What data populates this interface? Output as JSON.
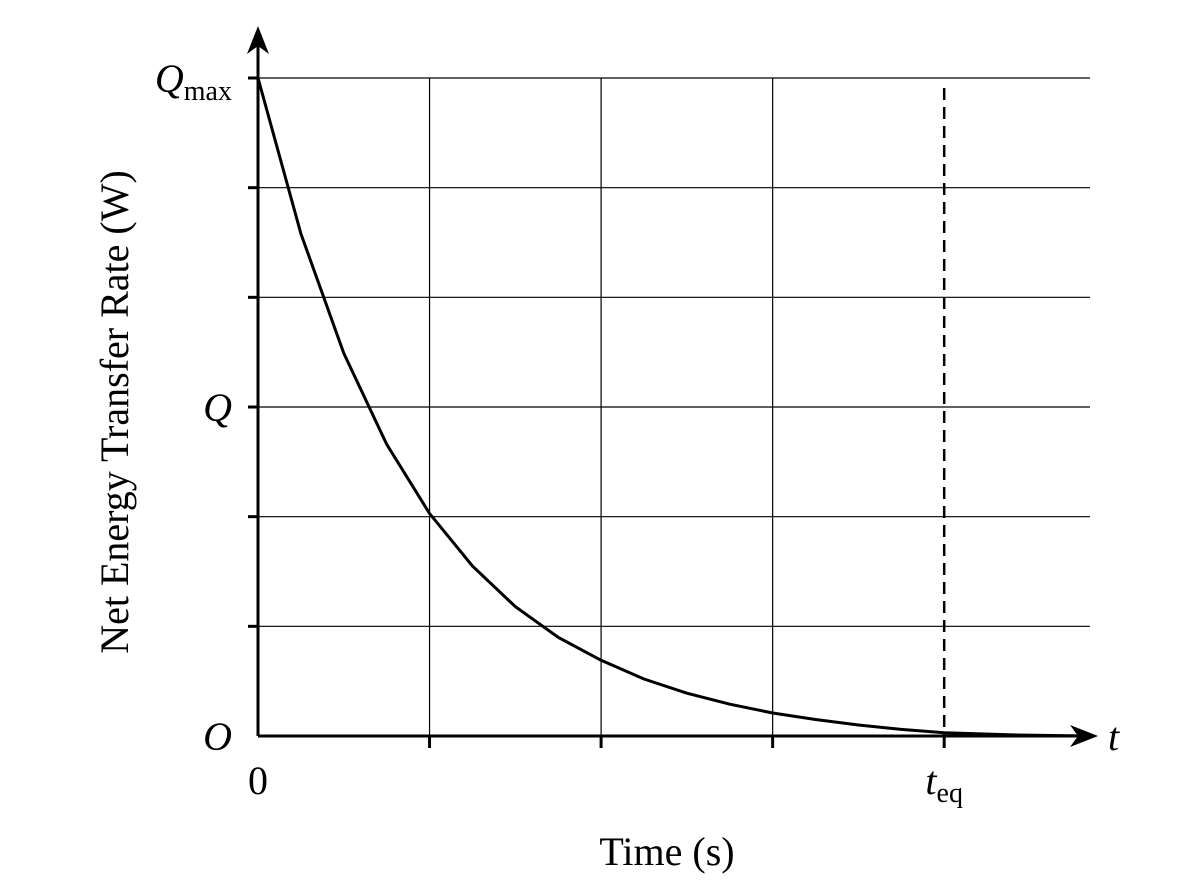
{
  "chart_data": {
    "type": "line",
    "xlabel": "Time (s)",
    "ylabel": "Net Energy Transfer Rate (W)",
    "x_axis_symbol": "t",
    "x_ticks": [
      {
        "main": "0",
        "sub": ""
      },
      {
        "main": "t",
        "sub": "eq"
      }
    ],
    "y_ticks": [
      {
        "main": "O",
        "sub": ""
      },
      {
        "main": "Q",
        "sub": ""
      },
      {
        "main": "Q",
        "sub": "max"
      }
    ],
    "xlim": [
      0,
      4.85
    ],
    "ylim": [
      0,
      6
    ],
    "x_grid_count": 4,
    "y_grid_count": 6,
    "grid": true,
    "equilibrium_x": 4,
    "series": [
      {
        "x": [
          0,
          0.25,
          0.5,
          0.75,
          1,
          1.25,
          1.5,
          1.75,
          2,
          2.25,
          2.5,
          2.75,
          3,
          3.25,
          3.5,
          3.75,
          4,
          4.4,
          4.85
        ],
        "y": [
          6,
          4.58,
          3.49,
          2.66,
          2.03,
          1.55,
          1.18,
          0.9,
          0.69,
          0.52,
          0.39,
          0.29,
          0.21,
          0.15,
          0.1,
          0.06,
          0.03,
          0.01,
          0.0
        ]
      }
    ]
  }
}
